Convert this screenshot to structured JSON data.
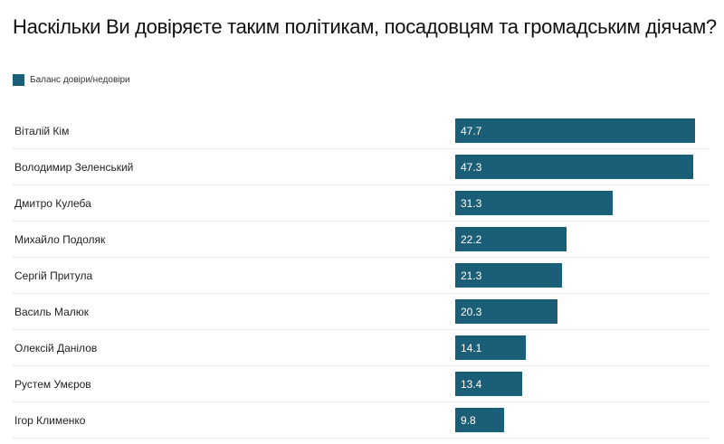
{
  "chart_data": {
    "type": "bar",
    "orientation": "horizontal",
    "title": "Наскільки Ви довіряєте таким політикам, посадовцям та громадським діячам?",
    "legend": [
      "Баланс довіри/недовіри"
    ],
    "categories": [
      "Віталій Кім",
      "Володимир Зеленський",
      "Дмитро Кулеба",
      "Михайло Подоляк",
      "Сергій Притула",
      "Василь Малюк",
      "Олексій Данілов",
      "Рустем Умєров",
      "Ігор Клименко"
    ],
    "values": [
      47.7,
      47.3,
      31.3,
      22.2,
      21.3,
      20.3,
      14.1,
      13.4,
      9.8
    ],
    "labels": [
      "47.7",
      "47.3",
      "31.3",
      "22.2",
      "21.3",
      "20.3",
      "14.1",
      "13.4",
      "9.8"
    ],
    "xlim": [
      0,
      48
    ],
    "color": "#1b5e78"
  }
}
